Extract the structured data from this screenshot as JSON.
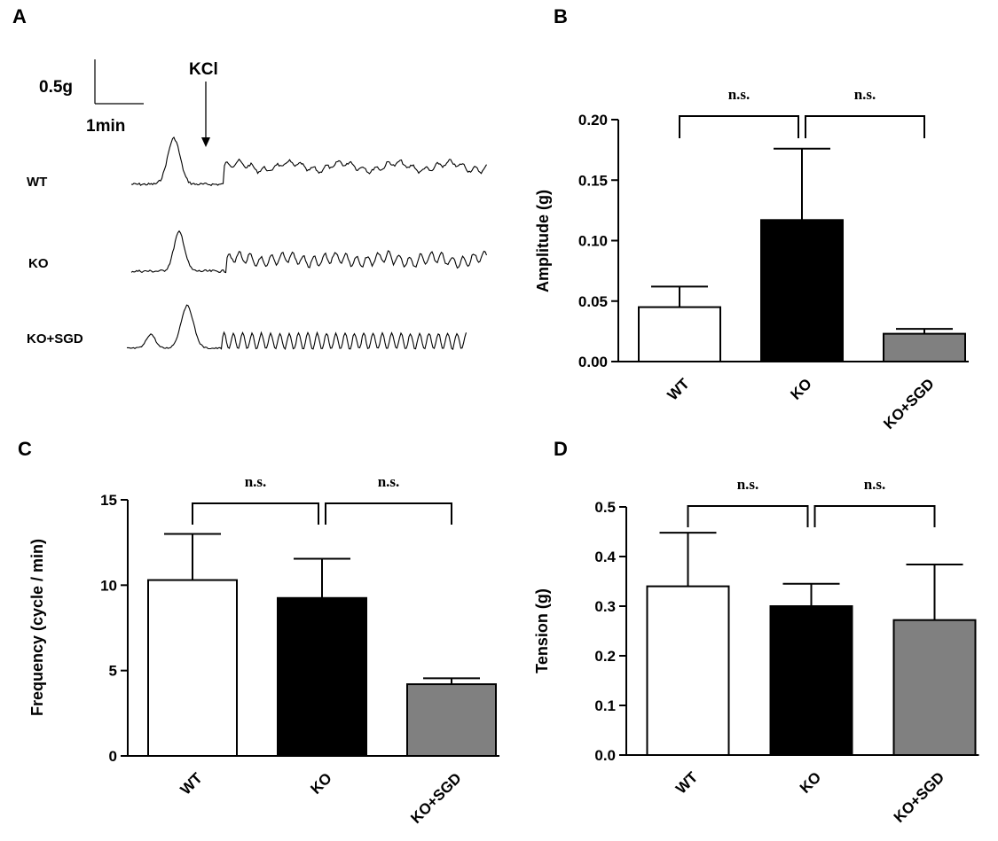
{
  "panel_a": {
    "letter": "A",
    "scale_y_label": "0.5g",
    "scale_x_label": "1min",
    "stimulus_label": "KCl",
    "trace_labels": [
      "WT",
      "KO",
      "KO+SGD"
    ]
  },
  "chart_data": [
    {
      "letter": "B",
      "type": "bar",
      "categories": [
        "WT",
        "KO",
        "KO+SGD"
      ],
      "values": [
        0.045,
        0.117,
        0.023
      ],
      "errors": [
        0.017,
        0.059,
        0.004
      ],
      "bar_colors": [
        "#ffffff",
        "#000000",
        "#808080"
      ],
      "ylabel": "Amplitude (g)",
      "ylim": [
        0,
        0.2
      ],
      "yticks": [
        "0.00",
        "0.05",
        "0.10",
        "0.15",
        "0.20"
      ],
      "tick_values": [
        0,
        0.05,
        0.1,
        0.15,
        0.2
      ],
      "significance": [
        "n.s.",
        "n.s."
      ]
    },
    {
      "letter": "C",
      "type": "bar",
      "categories": [
        "WT",
        "KO",
        "KO+SGD"
      ],
      "values": [
        10.3,
        9.25,
        4.2
      ],
      "errors": [
        2.7,
        2.3,
        0.35
      ],
      "bar_colors": [
        "#ffffff",
        "#000000",
        "#808080"
      ],
      "ylabel": "Frequency (cycle / min)",
      "ylim": [
        0,
        15
      ],
      "yticks": [
        "0",
        "5",
        "10",
        "15"
      ],
      "tick_values": [
        0,
        5,
        10,
        15
      ],
      "significance": [
        "n.s.",
        "n.s."
      ]
    },
    {
      "letter": "D",
      "type": "bar",
      "categories": [
        "WT",
        "KO",
        "KO+SGD"
      ],
      "values": [
        0.34,
        0.3,
        0.272
      ],
      "errors": [
        0.108,
        0.045,
        0.112
      ],
      "bar_colors": [
        "#ffffff",
        "#000000",
        "#808080"
      ],
      "ylabel": "Tension (g)",
      "ylim": [
        0,
        0.5
      ],
      "yticks": [
        "0.0",
        "0.1",
        "0.2",
        "0.3",
        "0.4",
        "0.5"
      ],
      "tick_values": [
        0,
        0.1,
        0.2,
        0.3,
        0.4,
        0.5
      ],
      "significance": [
        "n.s.",
        "n.s."
      ]
    }
  ]
}
